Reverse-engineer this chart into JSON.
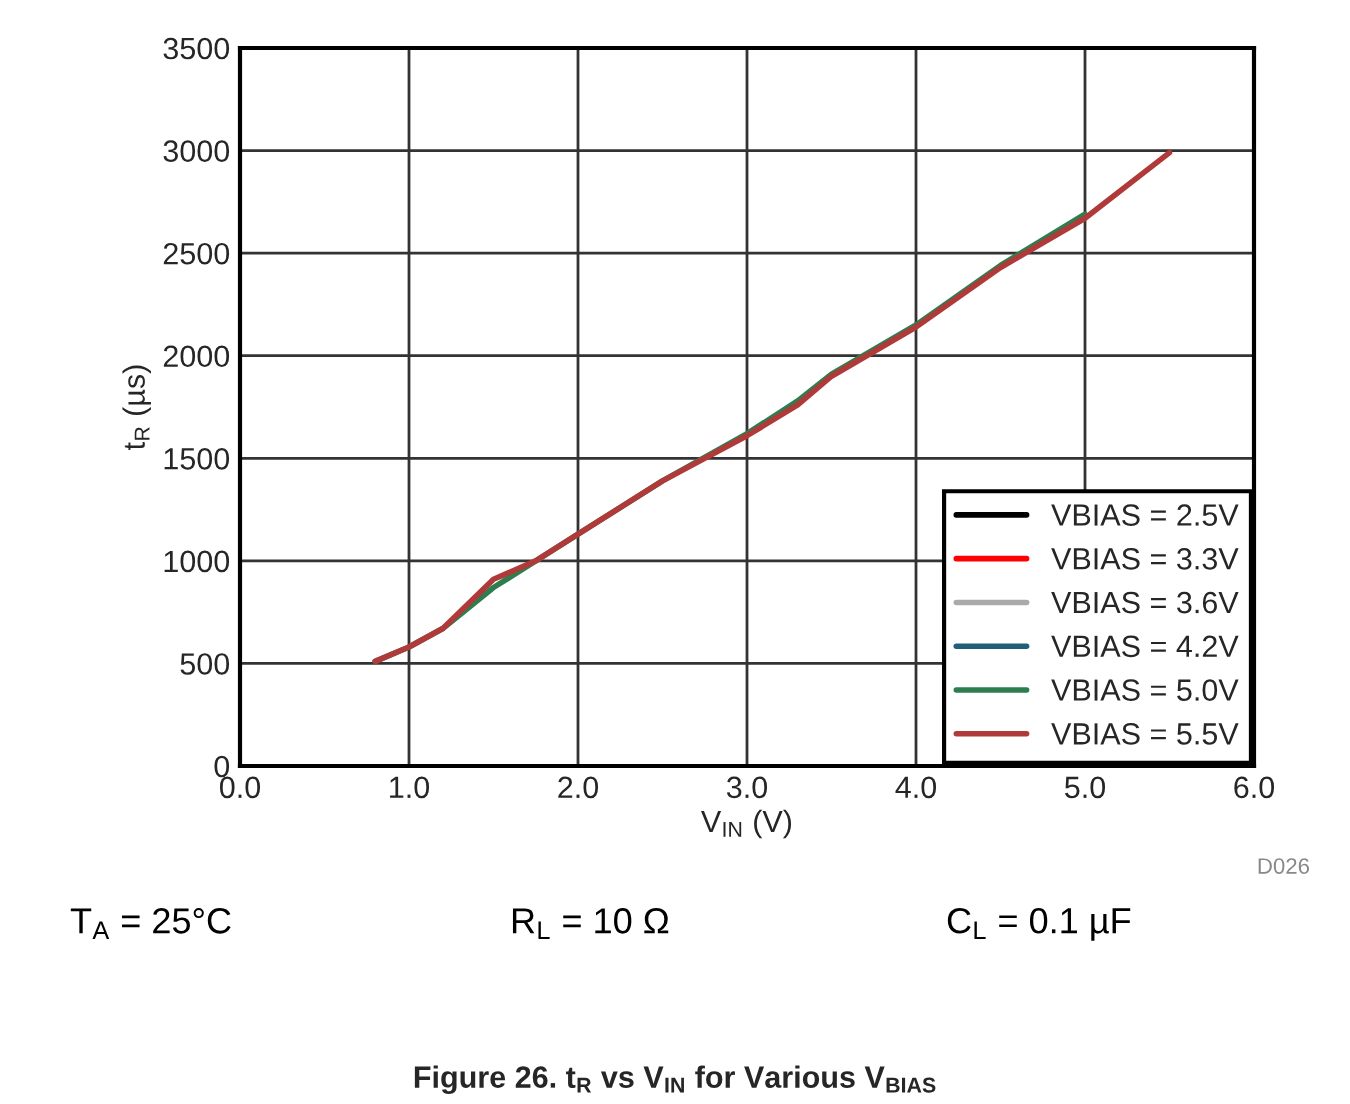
{
  "chart_data": {
    "type": "line",
    "title": "Figure 26. t$_{R}$ vs V$_{IN}$ for Various V$_{BIAS}$",
    "xlabel": "V$_{IN}$ (V)",
    "ylabel": "t$_{R}$ (µs)",
    "xlim": [
      0,
      6
    ],
    "xticks": [
      {
        "value": 0,
        "label": "0.0"
      },
      {
        "value": 1,
        "label": "1.0"
      },
      {
        "value": 2,
        "label": "2.0"
      },
      {
        "value": 3,
        "label": "3.0"
      },
      {
        "value": 4,
        "label": "4.0"
      },
      {
        "value": 5,
        "label": "5.0"
      },
      {
        "value": 6,
        "label": "6.0"
      }
    ],
    "ylim": [
      0,
      3500
    ],
    "yticks": [
      0,
      500,
      1000,
      1500,
      2000,
      2500,
      3000,
      3500
    ],
    "grid": true,
    "legend": "bottom right",
    "marker": "none",
    "line_style": "solid",
    "annotations": [
      "D026",
      "T$_{A}$ = 25°C",
      "R$_{L}$ = 10 Ω",
      "C$_{L}$ = 0.1 µF"
    ],
    "series": [
      {
        "name": "VBIAS = 2.5V",
        "color": "#000000"
      },
      {
        "name": "VBIAS = 3.3V",
        "color": "#ff0000"
      },
      {
        "name": "VBIAS = 3.6V",
        "color": "#aaaaaa"
      },
      {
        "name": "VBIAS = 4.2V",
        "color": "#1f5f7a"
      },
      {
        "name": "VBIAS = 5.0V",
        "color": "#2e7d4f",
        "x": [
          0.8,
          1.0,
          1.2,
          1.5,
          1.75,
          2.0,
          2.5,
          3.0,
          3.3,
          3.5,
          4.0,
          4.5,
          5.0
        ],
        "values": [
          510,
          580,
          670,
          870,
          1000,
          1130,
          1390,
          1620,
          1780,
          1910,
          2150,
          2440,
          2690
        ]
      },
      {
        "name": "VBIAS = 5.5V",
        "color": "#b03a3a",
        "x": [
          0.8,
          1.0,
          1.2,
          1.5,
          1.75,
          2.0,
          2.5,
          3.0,
          3.3,
          3.5,
          4.0,
          4.5,
          5.0,
          5.5
        ],
        "values": [
          510,
          580,
          670,
          910,
          1000,
          1130,
          1390,
          1610,
          1760,
          1900,
          2140,
          2430,
          2670,
          2990
        ]
      }
    ]
  }
}
